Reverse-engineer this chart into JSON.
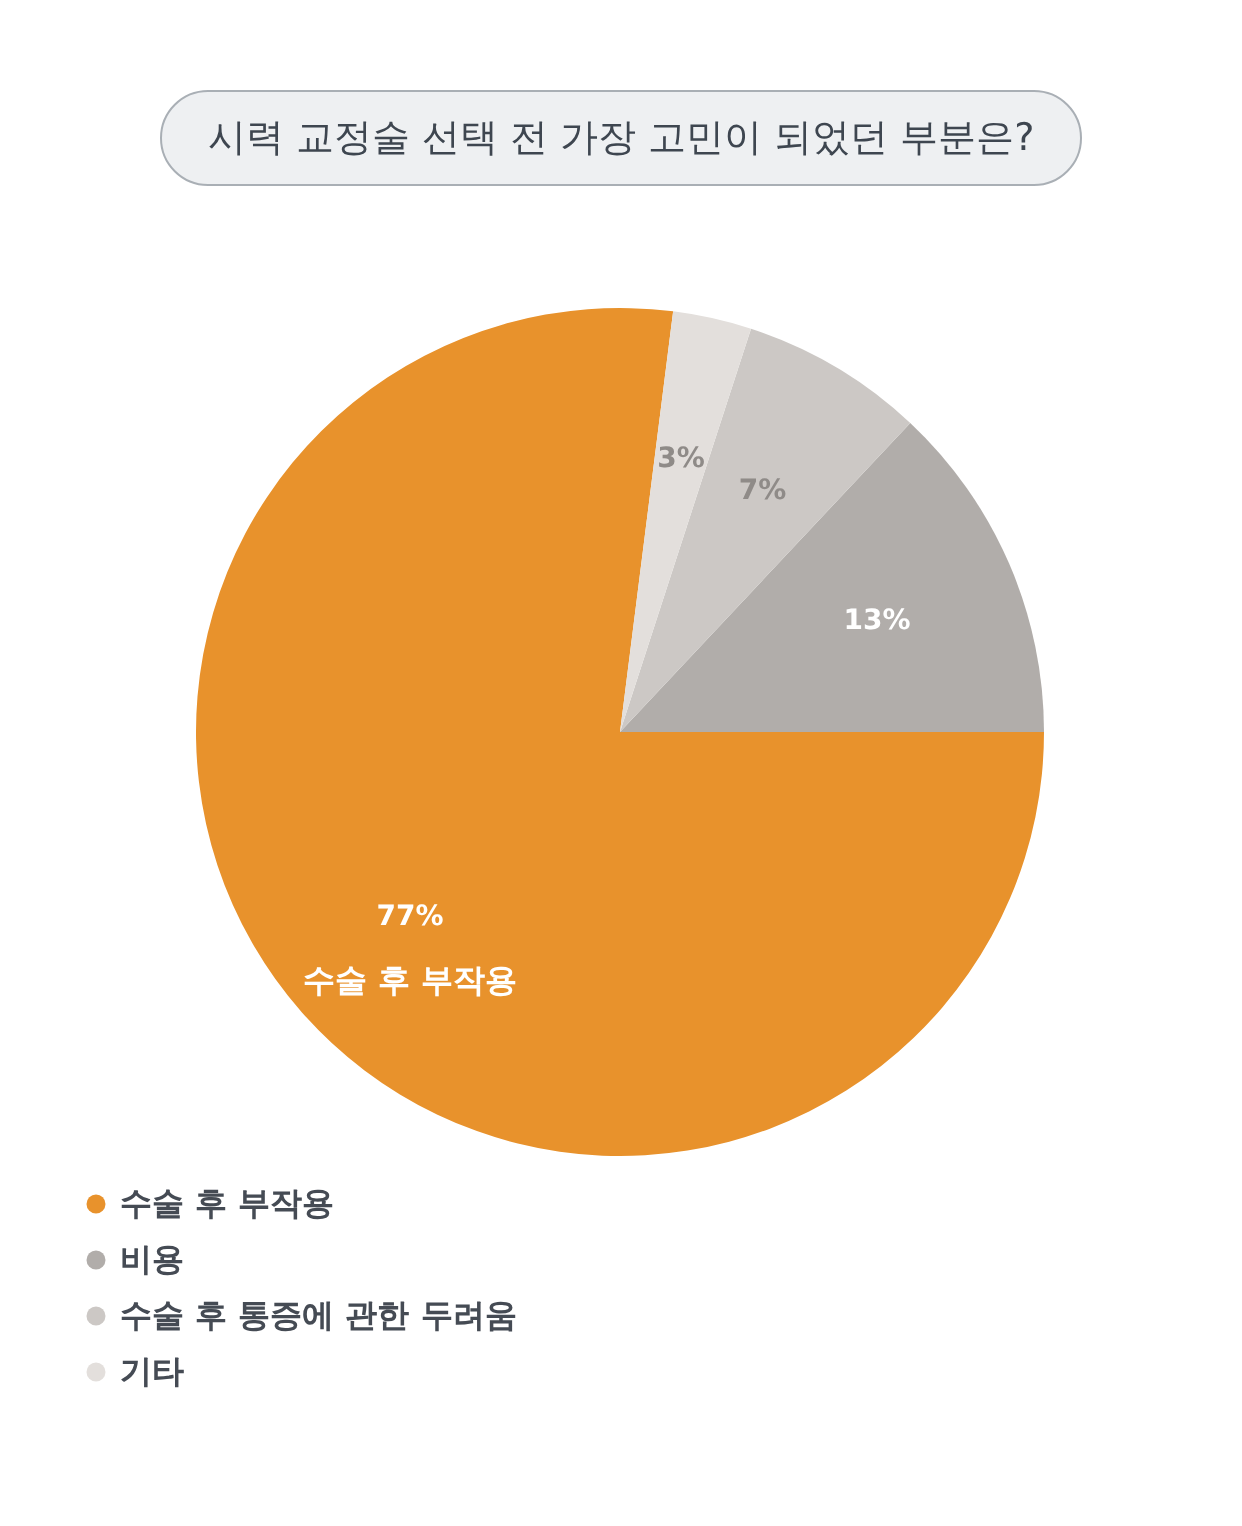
{
  "chart_data": {
    "type": "pie",
    "title": "시력 교정술 선택 전 가장 고민이 되었던 부분은?",
    "categories": [
      "수술 후 부작용",
      "비용",
      "수술 후 통증에 관한 두려움",
      "기타"
    ],
    "values": [
      77,
      13,
      7,
      3
    ],
    "colors": [
      "#e8922c",
      "#b1adaa",
      "#ccc8c5",
      "#e3dfdc"
    ],
    "value_labels": [
      "77%",
      "13%",
      "7%",
      "3%"
    ],
    "annotations": [
      "수술 후 부작용"
    ],
    "legend": "bottom left"
  }
}
